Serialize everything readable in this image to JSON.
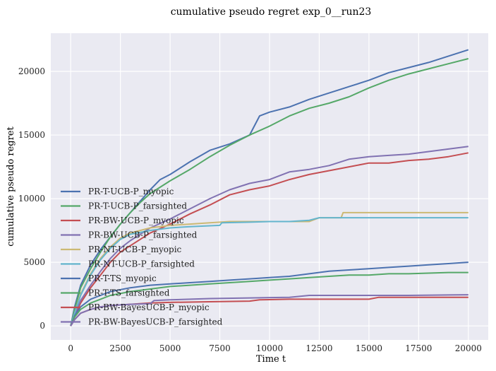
{
  "chart_data": {
    "type": "line",
    "title": "cumulative pseudo regret exp_0__run23",
    "xlabel": "Time t",
    "ylabel": "cumulative pseudo regret",
    "xlim": [
      -1000,
      21000
    ],
    "ylim": [
      -1100,
      23000
    ],
    "xticks": [
      0,
      2500,
      5000,
      7500,
      10000,
      12500,
      15000,
      17500,
      20000
    ],
    "yticks": [
      0,
      5000,
      10000,
      15000,
      20000
    ],
    "grid": true,
    "legend_position": "left",
    "series": [
      {
        "name": "PR-T-UCB-P_myopic",
        "color": "#4c72b0",
        "x": [
          0,
          200,
          500,
          1000,
          1500,
          2000,
          2500,
          3000,
          3500,
          4000,
          4500,
          5000,
          6000,
          7000,
          8000,
          9000,
          9500,
          10000,
          11000,
          12000,
          13000,
          14000,
          15000,
          16000,
          17000,
          18000,
          19000,
          20000
        ],
        "y": [
          0,
          1500,
          3200,
          4800,
          6000,
          7000,
          8000,
          8900,
          9800,
          10700,
          11500,
          11900,
          12900,
          13800,
          14300,
          15000,
          16500,
          16800,
          17200,
          17800,
          18300,
          18800,
          19300,
          19900,
          20300,
          20700,
          21200,
          21700
        ]
      },
      {
        "name": "PR-T-UCB-P_farsighted",
        "color": "#55a868",
        "x": [
          0,
          200,
          500,
          1000,
          1500,
          2000,
          2500,
          3000,
          3500,
          4000,
          4500,
          5000,
          6000,
          7000,
          8000,
          9000,
          10000,
          11000,
          12000,
          13000,
          14000,
          15000,
          16000,
          17000,
          18000,
          19000,
          20000
        ],
        "y": [
          0,
          1300,
          3000,
          4500,
          5800,
          7000,
          8000,
          8900,
          9700,
          10400,
          10900,
          11400,
          12300,
          13300,
          14200,
          15000,
          15700,
          16500,
          17100,
          17500,
          18000,
          18700,
          19300,
          19800,
          20200,
          20600,
          21000
        ]
      },
      {
        "name": "PR-BW-UCB-P_myopic",
        "color": "#c44e52",
        "x": [
          0,
          200,
          500,
          1000,
          1500,
          2000,
          2500,
          3000,
          3500,
          4000,
          5000,
          6000,
          7000,
          8000,
          9000,
          10000,
          11000,
          12000,
          13000,
          14000,
          15000,
          16000,
          17000,
          18000,
          19000,
          20000
        ],
        "y": [
          0,
          800,
          1800,
          3000,
          4000,
          5000,
          5800,
          6300,
          6800,
          7300,
          8000,
          8800,
          9500,
          10300,
          10700,
          11000,
          11500,
          11900,
          12200,
          12500,
          12800,
          12800,
          13000,
          13100,
          13300,
          13600
        ]
      },
      {
        "name": "PR-BW-UCB-P_farsighted",
        "color": "#8172b2",
        "x": [
          0,
          200,
          500,
          1000,
          1500,
          2000,
          2500,
          3000,
          3500,
          4000,
          5000,
          6000,
          7000,
          8000,
          9000,
          10000,
          11000,
          12000,
          13000,
          14000,
          15000,
          16000,
          17000,
          18000,
          19000,
          20000
        ],
        "y": [
          0,
          900,
          2000,
          3200,
          4300,
          5300,
          6100,
          6700,
          7200,
          7700,
          8400,
          9200,
          10000,
          10700,
          11200,
          11500,
          12100,
          12300,
          12600,
          13100,
          13300,
          13400,
          13500,
          13700,
          13900,
          14100
        ]
      },
      {
        "name": "PR-NT-UCB-P_myopic",
        "color": "#ccb974",
        "x": [
          0,
          200,
          500,
          1000,
          1500,
          2000,
          2500,
          3000,
          4000,
          5000,
          6000,
          7000,
          8000,
          9000,
          10000,
          11000,
          12000,
          12500,
          13600,
          13700,
          15000,
          17500,
          20000
        ],
        "y": [
          0,
          1000,
          2500,
          4100,
          5300,
          6200,
          6900,
          7300,
          7700,
          7900,
          8000,
          8100,
          8200,
          8200,
          8200,
          8200,
          8200,
          8500,
          8500,
          8900,
          8900,
          8900,
          8900
        ]
      },
      {
        "name": "PR-NT-UCB-P_farsighted",
        "color": "#64b5cd",
        "x": [
          0,
          200,
          500,
          1000,
          1500,
          2000,
          2500,
          3000,
          4000,
          5000,
          6000,
          7500,
          7600,
          9000,
          10000,
          11000,
          12000,
          12500,
          15000,
          17500,
          20000
        ],
        "y": [
          0,
          1000,
          2400,
          4000,
          5200,
          6100,
          6800,
          7200,
          7500,
          7700,
          7800,
          7900,
          8100,
          8150,
          8200,
          8200,
          8300,
          8500,
          8500,
          8500,
          8500
        ]
      },
      {
        "name": "PR-T-TS_myopic",
        "color": "#4c72b0",
        "x": [
          0,
          200,
          500,
          1000,
          1500,
          2000,
          3000,
          4000,
          5000,
          6000,
          7000,
          8000,
          9000,
          10000,
          11000,
          12000,
          13000,
          14000,
          15000,
          16000,
          17000,
          18000,
          19000,
          20000
        ],
        "y": [
          0,
          800,
          1500,
          2100,
          2400,
          2700,
          3000,
          3200,
          3300,
          3400,
          3500,
          3600,
          3700,
          3800,
          3900,
          4100,
          4300,
          4400,
          4500,
          4600,
          4700,
          4800,
          4900,
          5000
        ]
      },
      {
        "name": "PR-T-TS_farsighted",
        "color": "#55a868",
        "x": [
          0,
          200,
          500,
          1000,
          1500,
          2000,
          3000,
          4000,
          5000,
          6000,
          7000,
          8000,
          9000,
          10000,
          11000,
          12000,
          13000,
          14000,
          15000,
          16000,
          17000,
          18000,
          19000,
          20000
        ],
        "y": [
          0,
          700,
          1300,
          1800,
          2100,
          2400,
          2700,
          2900,
          3100,
          3200,
          3300,
          3400,
          3500,
          3600,
          3700,
          3800,
          3900,
          4000,
          4000,
          4100,
          4100,
          4150,
          4200,
          4200
        ]
      },
      {
        "name": "PR-BW-BayesUCB-P_myopic",
        "color": "#c44e52",
        "x": [
          0,
          200,
          500,
          1000,
          1500,
          2000,
          3000,
          4000,
          5000,
          7000,
          9000,
          9500,
          11000,
          13000,
          15000,
          15500,
          17000,
          20000
        ],
        "y": [
          0,
          500,
          1000,
          1300,
          1500,
          1600,
          1700,
          1800,
          1850,
          1900,
          1950,
          2050,
          2100,
          2100,
          2100,
          2250,
          2250,
          2250
        ]
      },
      {
        "name": "PR-BW-BayesUCB-P_farsighted",
        "color": "#8172b2",
        "x": [
          0,
          200,
          500,
          1000,
          1500,
          2000,
          3000,
          4000,
          4200,
          5000,
          7000,
          9000,
          11000,
          12000,
          13000,
          15000,
          17000,
          20000
        ],
        "y": [
          0,
          500,
          1000,
          1300,
          1500,
          1600,
          1700,
          1750,
          2000,
          2050,
          2150,
          2200,
          2250,
          2400,
          2400,
          2400,
          2400,
          2450
        ]
      }
    ]
  }
}
